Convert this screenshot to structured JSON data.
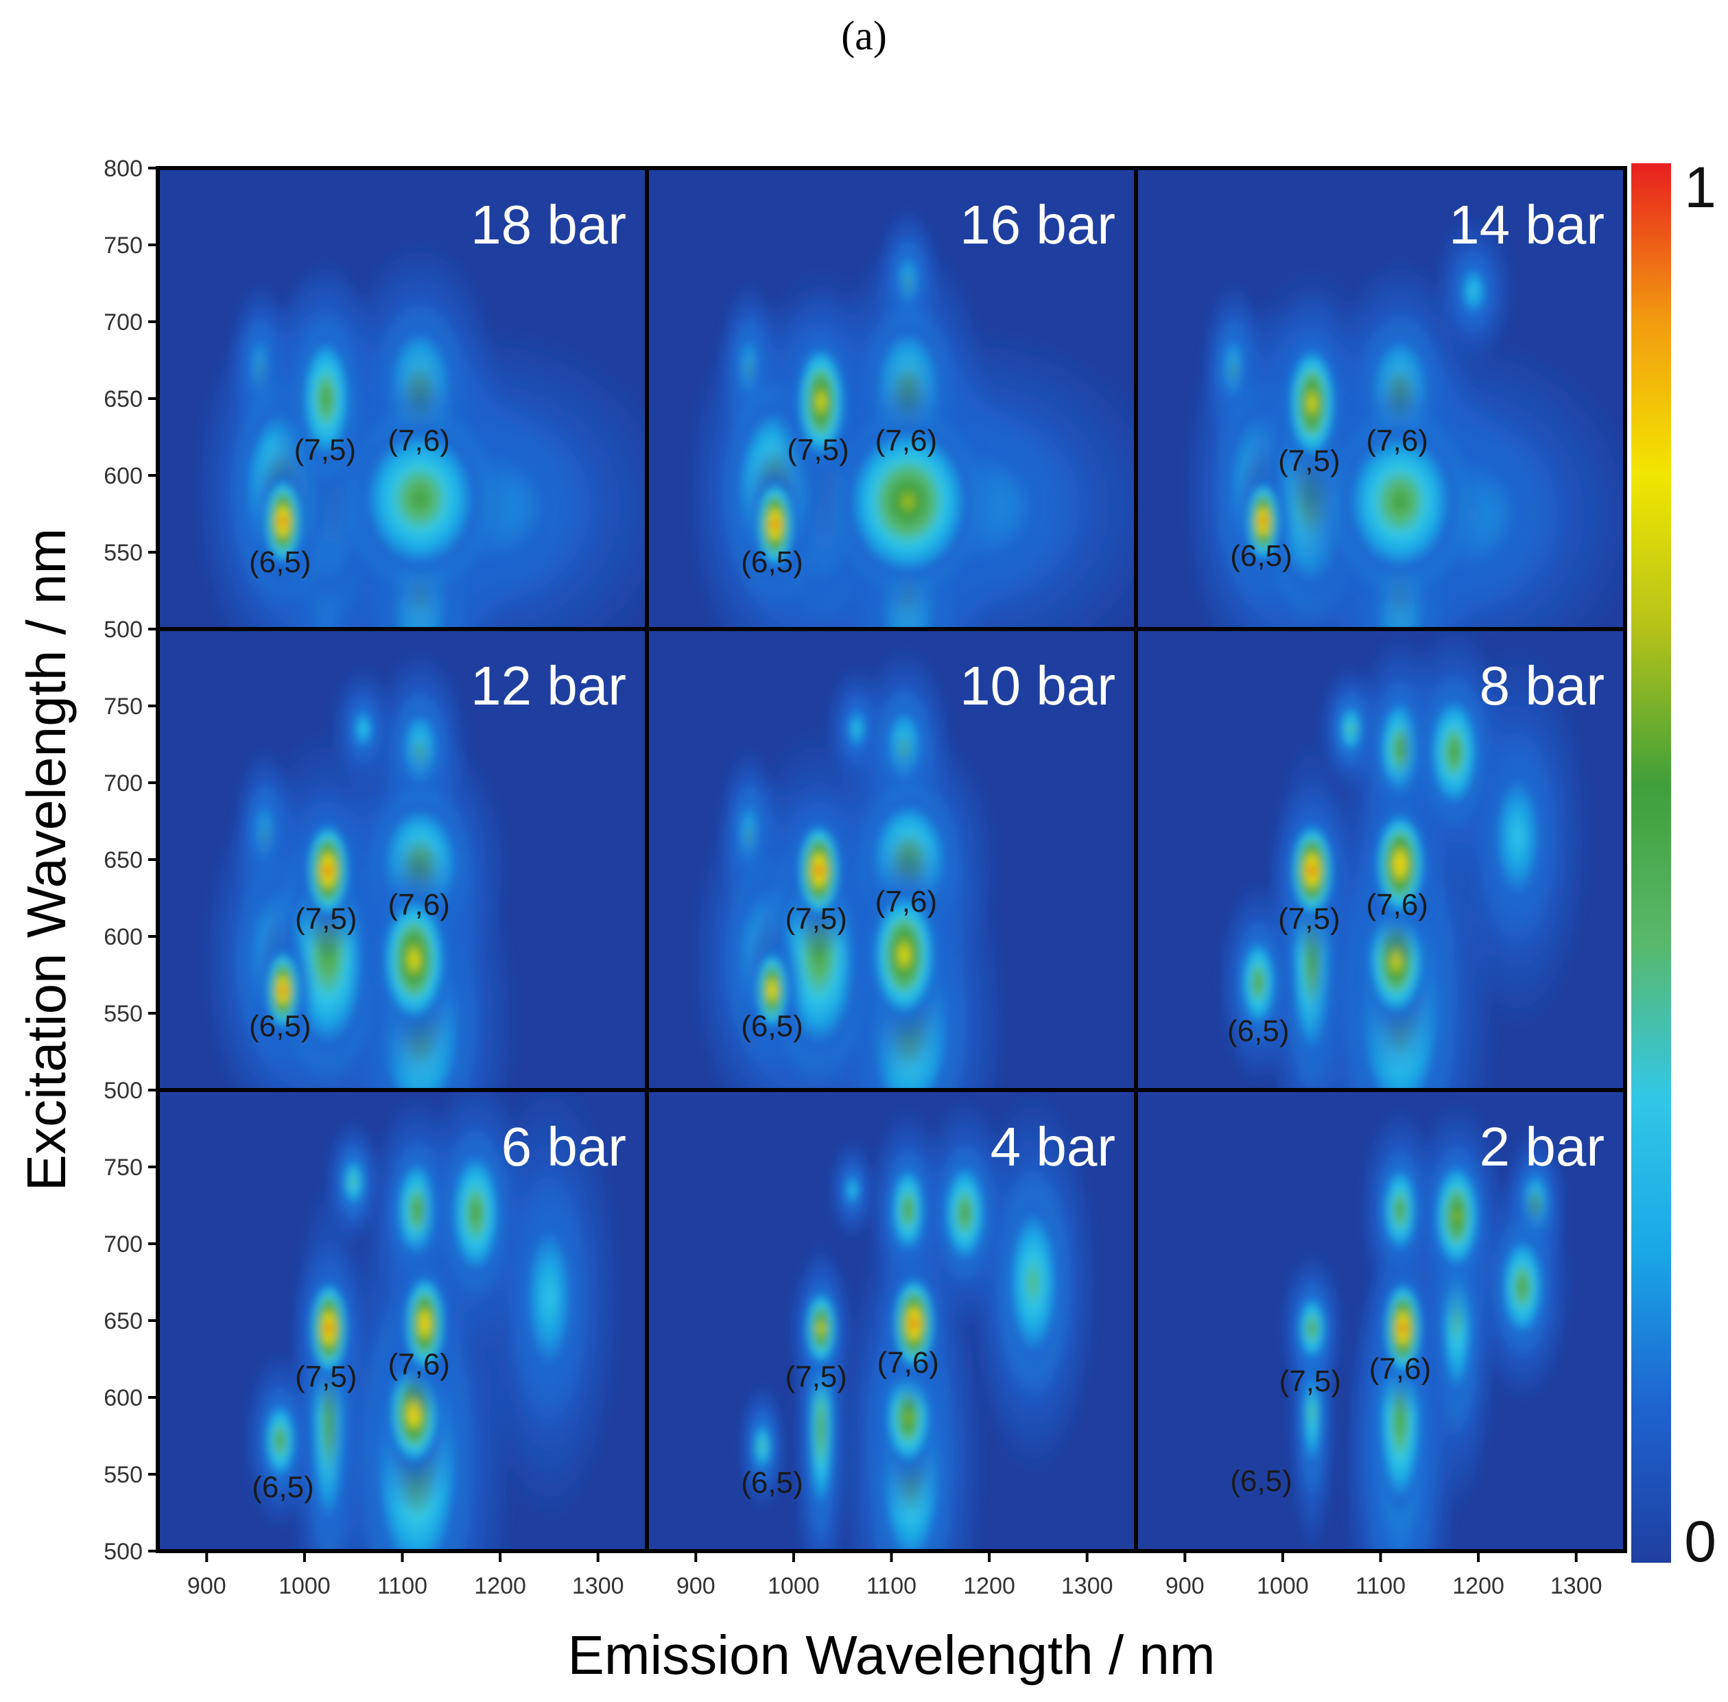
{
  "figure": {
    "panel_label": "(a)"
  },
  "chart_data": {
    "type": "heatmap",
    "xlabel": "Emission Wavelength / nm",
    "ylabel": "Excitation Wavelength / nm",
    "xlim": [
      850,
      1350
    ],
    "ylim": [
      500,
      800
    ],
    "x_ticks": [
      900,
      1000,
      1100,
      1200,
      1300
    ],
    "y_ticks": [
      500,
      550,
      600,
      650,
      700,
      750,
      800
    ],
    "colorbar": {
      "min": 0,
      "max": 1,
      "min_label": "0",
      "max_label": "1",
      "colors": [
        "#1f3fa0",
        "#1e63cf",
        "#1aa7e6",
        "#33c7e6",
        "#59b86a",
        "#3f9f3a",
        "#b4c21a",
        "#f2e600",
        "#f29a10",
        "#e81f1f"
      ]
    },
    "panels": [
      {
        "label": "18 bar",
        "spots": [
          {
            "x": 978,
            "y": 570,
            "v": 1.0,
            "sx": 9,
            "sy": 13
          },
          {
            "x": 978,
            "y": 590,
            "v": 0.55,
            "sx": 22,
            "sy": 30
          },
          {
            "x": 1022,
            "y": 650,
            "v": 0.62,
            "sx": 14,
            "sy": 22
          },
          {
            "x": 1022,
            "y": 590,
            "v": 0.5,
            "sx": 22,
            "sy": 35
          },
          {
            "x": 1118,
            "y": 585,
            "v": 0.6,
            "sx": 32,
            "sy": 25
          },
          {
            "x": 1118,
            "y": 650,
            "v": 0.45,
            "sx": 20,
            "sy": 25
          },
          {
            "x": 1118,
            "y": 525,
            "v": 0.35,
            "sx": 20,
            "sy": 30
          },
          {
            "x": 1180,
            "y": 580,
            "v": 0.3,
            "sx": 50,
            "sy": 28
          },
          {
            "x": 955,
            "y": 668,
            "v": 0.42,
            "sx": 8,
            "sy": 14
          },
          {
            "x": 1022,
            "y": 525,
            "v": 0.35,
            "sx": 10,
            "sy": 25
          }
        ],
        "annotations": [
          {
            "text": "(6,5)",
            "x": 975,
            "y": 537
          },
          {
            "text": "(7,5)",
            "x": 1021,
            "y": 610
          },
          {
            "text": "(7,6)",
            "x": 1117,
            "y": 616
          }
        ]
      },
      {
        "label": "16 bar",
        "spots": [
          {
            "x": 981,
            "y": 568,
            "v": 1.0,
            "sx": 9,
            "sy": 13
          },
          {
            "x": 981,
            "y": 590,
            "v": 0.55,
            "sx": 22,
            "sy": 30
          },
          {
            "x": 1028,
            "y": 648,
            "v": 0.78,
            "sx": 12,
            "sy": 18
          },
          {
            "x": 1028,
            "y": 590,
            "v": 0.5,
            "sx": 22,
            "sy": 35
          },
          {
            "x": 1117,
            "y": 583,
            "v": 0.65,
            "sx": 32,
            "sy": 25
          },
          {
            "x": 1117,
            "y": 650,
            "v": 0.5,
            "sx": 20,
            "sy": 25
          },
          {
            "x": 1117,
            "y": 525,
            "v": 0.35,
            "sx": 20,
            "sy": 30
          },
          {
            "x": 1180,
            "y": 580,
            "v": 0.3,
            "sx": 50,
            "sy": 28
          },
          {
            "x": 1117,
            "y": 725,
            "v": 0.35,
            "sx": 8,
            "sy": 12
          },
          {
            "x": 955,
            "y": 668,
            "v": 0.42,
            "sx": 8,
            "sy": 14
          }
        ],
        "annotations": [
          {
            "text": "(6,5)",
            "x": 978,
            "y": 537
          },
          {
            "text": "(7,5)",
            "x": 1025,
            "y": 610
          },
          {
            "text": "(7,6)",
            "x": 1115,
            "y": 616
          }
        ]
      },
      {
        "label": "14 bar",
        "spots": [
          {
            "x": 980,
            "y": 570,
            "v": 1.0,
            "sx": 8,
            "sy": 12
          },
          {
            "x": 980,
            "y": 590,
            "v": 0.5,
            "sx": 20,
            "sy": 30
          },
          {
            "x": 1030,
            "y": 647,
            "v": 0.82,
            "sx": 12,
            "sy": 18
          },
          {
            "x": 1030,
            "y": 590,
            "v": 0.5,
            "sx": 22,
            "sy": 35
          },
          {
            "x": 1120,
            "y": 583,
            "v": 0.6,
            "sx": 30,
            "sy": 25
          },
          {
            "x": 1120,
            "y": 650,
            "v": 0.55,
            "sx": 18,
            "sy": 22
          },
          {
            "x": 1120,
            "y": 525,
            "v": 0.35,
            "sx": 18,
            "sy": 30
          },
          {
            "x": 1180,
            "y": 575,
            "v": 0.3,
            "sx": 45,
            "sy": 28
          },
          {
            "x": 950,
            "y": 668,
            "v": 0.4,
            "sx": 8,
            "sy": 14
          },
          {
            "x": 1195,
            "y": 720,
            "v": 0.28,
            "sx": 10,
            "sy": 12
          }
        ],
        "annotations": [
          {
            "text": "(6,5)",
            "x": 978,
            "y": 541
          },
          {
            "text": "(7,5)",
            "x": 1027,
            "y": 603
          },
          {
            "text": "(7,6)",
            "x": 1117,
            "y": 616
          }
        ]
      },
      {
        "label": "12 bar",
        "spots": [
          {
            "x": 978,
            "y": 565,
            "v": 0.95,
            "sx": 8,
            "sy": 12
          },
          {
            "x": 978,
            "y": 585,
            "v": 0.5,
            "sx": 20,
            "sy": 28
          },
          {
            "x": 1024,
            "y": 643,
            "v": 1.0,
            "sx": 10,
            "sy": 14
          },
          {
            "x": 1024,
            "y": 590,
            "v": 0.5,
            "sx": 22,
            "sy": 35
          },
          {
            "x": 1112,
            "y": 585,
            "v": 0.8,
            "sx": 16,
            "sy": 20
          },
          {
            "x": 1118,
            "y": 645,
            "v": 0.55,
            "sx": 22,
            "sy": 22
          },
          {
            "x": 1118,
            "y": 545,
            "v": 0.45,
            "sx": 24,
            "sy": 35
          },
          {
            "x": 1118,
            "y": 720,
            "v": 0.4,
            "sx": 12,
            "sy": 16
          },
          {
            "x": 1060,
            "y": 735,
            "v": 0.3,
            "sx": 8,
            "sy": 10
          },
          {
            "x": 960,
            "y": 665,
            "v": 0.4,
            "sx": 8,
            "sy": 14
          }
        ],
        "annotations": [
          {
            "text": "(6,5)",
            "x": 975,
            "y": 535
          },
          {
            "text": "(7,5)",
            "x": 1022,
            "y": 605
          },
          {
            "text": "(7,6)",
            "x": 1117,
            "y": 614
          }
        ]
      },
      {
        "label": "10 bar",
        "spots": [
          {
            "x": 978,
            "y": 565,
            "v": 0.9,
            "sx": 8,
            "sy": 12
          },
          {
            "x": 978,
            "y": 585,
            "v": 0.5,
            "sx": 20,
            "sy": 28
          },
          {
            "x": 1026,
            "y": 643,
            "v": 1.0,
            "sx": 10,
            "sy": 14
          },
          {
            "x": 1026,
            "y": 590,
            "v": 0.5,
            "sx": 22,
            "sy": 35
          },
          {
            "x": 1113,
            "y": 588,
            "v": 0.82,
            "sx": 16,
            "sy": 20
          },
          {
            "x": 1118,
            "y": 648,
            "v": 0.6,
            "sx": 22,
            "sy": 22
          },
          {
            "x": 1118,
            "y": 545,
            "v": 0.45,
            "sx": 24,
            "sy": 35
          },
          {
            "x": 1113,
            "y": 722,
            "v": 0.4,
            "sx": 12,
            "sy": 16
          },
          {
            "x": 1065,
            "y": 735,
            "v": 0.3,
            "sx": 8,
            "sy": 10
          },
          {
            "x": 955,
            "y": 665,
            "v": 0.42,
            "sx": 8,
            "sy": 14
          }
        ],
        "annotations": [
          {
            "text": "(6,5)",
            "x": 978,
            "y": 535
          },
          {
            "text": "(7,5)",
            "x": 1023,
            "y": 605
          },
          {
            "text": "(7,6)",
            "x": 1115,
            "y": 616
          }
        ]
      },
      {
        "label": "8 bar",
        "spots": [
          {
            "x": 975,
            "y": 570,
            "v": 0.6,
            "sx": 10,
            "sy": 16
          },
          {
            "x": 1030,
            "y": 643,
            "v": 1.0,
            "sx": 10,
            "sy": 14
          },
          {
            "x": 1030,
            "y": 585,
            "v": 0.55,
            "sx": 12,
            "sy": 35
          },
          {
            "x": 1120,
            "y": 647,
            "v": 0.88,
            "sx": 12,
            "sy": 16
          },
          {
            "x": 1116,
            "y": 585,
            "v": 0.82,
            "sx": 14,
            "sy": 18
          },
          {
            "x": 1120,
            "y": 560,
            "v": 0.55,
            "sx": 24,
            "sy": 45
          },
          {
            "x": 1120,
            "y": 722,
            "v": 0.55,
            "sx": 12,
            "sy": 18
          },
          {
            "x": 1175,
            "y": 720,
            "v": 0.58,
            "sx": 14,
            "sy": 20
          },
          {
            "x": 1070,
            "y": 735,
            "v": 0.35,
            "sx": 8,
            "sy": 10
          },
          {
            "x": 1240,
            "y": 665,
            "v": 0.3,
            "sx": 18,
            "sy": 30
          }
        ],
        "annotations": [
          {
            "text": "(6,5)",
            "x": 975,
            "y": 532
          },
          {
            "text": "(7,5)",
            "x": 1027,
            "y": 605
          },
          {
            "text": "(7,6)",
            "x": 1117,
            "y": 614
          }
        ]
      },
      {
        "label": "6 bar",
        "spots": [
          {
            "x": 975,
            "y": 572,
            "v": 0.6,
            "sx": 9,
            "sy": 14
          },
          {
            "x": 1025,
            "y": 645,
            "v": 1.0,
            "sx": 9,
            "sy": 14
          },
          {
            "x": 1025,
            "y": 585,
            "v": 0.55,
            "sx": 10,
            "sy": 38
          },
          {
            "x": 1123,
            "y": 648,
            "v": 0.92,
            "sx": 10,
            "sy": 15
          },
          {
            "x": 1112,
            "y": 590,
            "v": 0.85,
            "sx": 12,
            "sy": 16
          },
          {
            "x": 1115,
            "y": 560,
            "v": 0.55,
            "sx": 24,
            "sy": 45
          },
          {
            "x": 1115,
            "y": 722,
            "v": 0.55,
            "sx": 12,
            "sy": 18
          },
          {
            "x": 1175,
            "y": 720,
            "v": 0.6,
            "sx": 14,
            "sy": 22
          },
          {
            "x": 1050,
            "y": 740,
            "v": 0.35,
            "sx": 7,
            "sy": 10
          },
          {
            "x": 1250,
            "y": 665,
            "v": 0.32,
            "sx": 18,
            "sy": 35
          }
        ],
        "annotations": [
          {
            "text": "(6,5)",
            "x": 978,
            "y": 535
          },
          {
            "text": "(7,5)",
            "x": 1022,
            "y": 607
          },
          {
            "text": "(7,6)",
            "x": 1117,
            "y": 615
          }
        ]
      },
      {
        "label": "4 bar",
        "spots": [
          {
            "x": 968,
            "y": 568,
            "v": 0.4,
            "sx": 6,
            "sy": 10
          },
          {
            "x": 1028,
            "y": 645,
            "v": 0.8,
            "sx": 8,
            "sy": 12
          },
          {
            "x": 1028,
            "y": 580,
            "v": 0.45,
            "sx": 7,
            "sy": 30
          },
          {
            "x": 1123,
            "y": 648,
            "v": 1.0,
            "sx": 10,
            "sy": 14
          },
          {
            "x": 1117,
            "y": 587,
            "v": 0.7,
            "sx": 12,
            "sy": 16
          },
          {
            "x": 1120,
            "y": 560,
            "v": 0.55,
            "sx": 18,
            "sy": 40
          },
          {
            "x": 1117,
            "y": 722,
            "v": 0.55,
            "sx": 10,
            "sy": 16
          },
          {
            "x": 1175,
            "y": 720,
            "v": 0.62,
            "sx": 12,
            "sy": 18
          },
          {
            "x": 1060,
            "y": 735,
            "v": 0.3,
            "sx": 6,
            "sy": 8
          },
          {
            "x": 1245,
            "y": 675,
            "v": 0.35,
            "sx": 16,
            "sy": 30
          }
        ],
        "annotations": [
          {
            "text": "(6,5)",
            "x": 978,
            "y": 538
          },
          {
            "text": "(7,5)",
            "x": 1023,
            "y": 607
          },
          {
            "text": "(7,6)",
            "x": 1117,
            "y": 616
          }
        ]
      },
      {
        "label": "2 bar",
        "spots": [
          {
            "x": 1030,
            "y": 645,
            "v": 0.55,
            "sx": 8,
            "sy": 12
          },
          {
            "x": 1030,
            "y": 590,
            "v": 0.35,
            "sx": 6,
            "sy": 22
          },
          {
            "x": 1123,
            "y": 645,
            "v": 1.0,
            "sx": 9,
            "sy": 14
          },
          {
            "x": 1120,
            "y": 585,
            "v": 0.55,
            "sx": 12,
            "sy": 30
          },
          {
            "x": 1120,
            "y": 555,
            "v": 0.5,
            "sx": 14,
            "sy": 35
          },
          {
            "x": 1120,
            "y": 722,
            "v": 0.5,
            "sx": 10,
            "sy": 16
          },
          {
            "x": 1178,
            "y": 718,
            "v": 0.7,
            "sx": 12,
            "sy": 18
          },
          {
            "x": 1178,
            "y": 650,
            "v": 0.4,
            "sx": 10,
            "sy": 30
          },
          {
            "x": 1258,
            "y": 725,
            "v": 0.45,
            "sx": 8,
            "sy": 12
          },
          {
            "x": 1245,
            "y": 672,
            "v": 0.52,
            "sx": 12,
            "sy": 18
          }
        ],
        "annotations": [
          {
            "text": "(6,5)",
            "x": 978,
            "y": 539
          },
          {
            "text": "(7,5)",
            "x": 1028,
            "y": 604
          },
          {
            "text": "(7,6)",
            "x": 1120,
            "y": 612
          }
        ]
      }
    ]
  }
}
